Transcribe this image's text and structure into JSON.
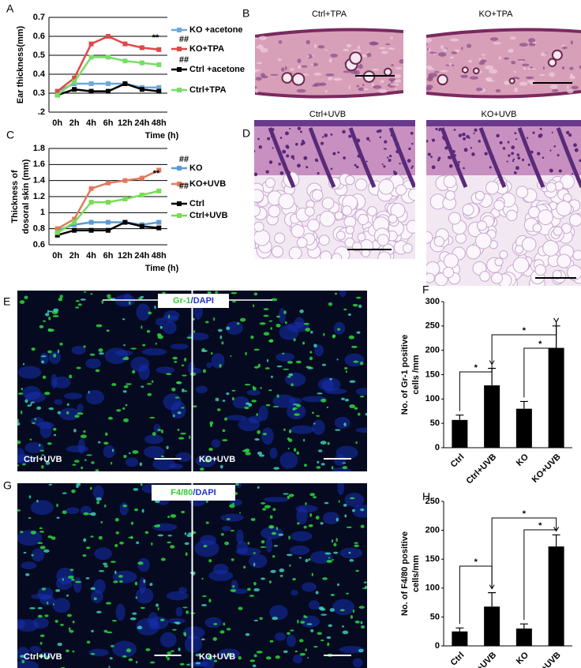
{
  "panels": {
    "letters": [
      "A",
      "B",
      "C",
      "D",
      "E",
      "F",
      "G",
      "H"
    ],
    "b_labels": [
      "Ctrl+TPA",
      "KO+TPA"
    ],
    "d_labels": [
      "Ctrl+UVB",
      "KO+UVB"
    ],
    "e_stain": [
      "Gr-1",
      "/DAPI"
    ],
    "e_labels": [
      "Ctrl+UVB",
      "KO+UVB"
    ],
    "g_stain": [
      "F4/80",
      "/DAPI"
    ],
    "g_labels": [
      "Ctrl+UVB",
      "KO+UVB"
    ]
  },
  "chart_data": [
    {
      "type": "line",
      "ylabel": [
        "Ear thickness(mm)"
      ],
      "xlabel": "Time (h)",
      "categories": [
        "0h",
        "2h",
        "4h",
        "6h",
        "12h",
        "24h",
        "48h"
      ],
      "ylim": [
        0.2,
        0.7
      ],
      "yticks": [
        {
          "value": 0.2,
          "label": ".2"
        },
        0.3,
        0.4,
        0.5,
        0.6,
        0.7
      ],
      "grid": true,
      "series": [
        {
          "name": "KO +acetone",
          "color": "#6fa8dc",
          "values": [
            0.31,
            0.35,
            0.35,
            0.35,
            0.35,
            0.33,
            0.33
          ]
        },
        {
          "name": "KO+TPA",
          "color": "#e04848",
          "values": [
            0.31,
            0.38,
            0.56,
            0.6,
            0.56,
            0.54,
            0.53
          ]
        },
        {
          "name": "Ctrl +acetone",
          "color": "#000000",
          "values": [
            0.29,
            0.32,
            0.31,
            0.31,
            0.35,
            0.32,
            0.31
          ]
        },
        {
          "name": "Ctrl+TPA",
          "color": "#77dd66",
          "values": [
            0.29,
            0.36,
            0.49,
            0.49,
            0.47,
            0.46,
            0.45
          ]
        }
      ],
      "annotations": [
        "**",
        "##",
        "##"
      ]
    },
    {
      "type": "line",
      "ylabel": [
        "Thickness of",
        "dosoral skin (mm)"
      ],
      "xlabel": "Time (h)",
      "categories": [
        "0h",
        "2h",
        "4h",
        "6h",
        "12h",
        "24h",
        "48h"
      ],
      "ylim": [
        0.6,
        1.8
      ],
      "yticks": [
        0.6,
        0.8,
        1,
        1.2,
        1.4,
        1.6,
        1.8
      ],
      "grid": true,
      "series": [
        {
          "name": "KO",
          "color": "#5b9bd5",
          "values": [
            0.78,
            0.85,
            0.88,
            0.88,
            0.88,
            0.85,
            0.88
          ]
        },
        {
          "name": "KO+UVB",
          "color": "#e07a5f",
          "values": [
            0.8,
            0.92,
            1.3,
            1.37,
            1.4,
            1.43,
            1.53
          ]
        },
        {
          "name": "Ctrl",
          "color": "#000000",
          "values": [
            0.72,
            0.78,
            0.78,
            0.78,
            0.88,
            0.83,
            0.81
          ]
        },
        {
          "name": "Ctrl+UVB",
          "color": "#77dd55",
          "values": [
            0.75,
            0.88,
            1.13,
            1.13,
            1.17,
            1.22,
            1.27
          ]
        }
      ],
      "annotations": [
        "**",
        "##",
        "##"
      ]
    },
    {
      "type": "bar",
      "ylabel": [
        "No. of Gr-1 positive",
        "cells /mm"
      ],
      "categories": [
        "Ctrl",
        "Ctrl+UVB",
        "KO",
        "KO+UVB"
      ],
      "values": [
        57,
        128,
        80,
        205
      ],
      "errors": [
        10,
        35,
        15,
        45
      ],
      "color": "#000000",
      "ylim": [
        0,
        300
      ],
      "yticks": [
        0,
        50,
        100,
        150,
        200,
        250,
        300
      ],
      "annotations": [
        "*",
        "*",
        "*"
      ]
    },
    {
      "type": "bar",
      "ylabel": [
        "No. of F4/80 positive",
        "cells/mm"
      ],
      "categories": [
        "Ctrl",
        "Ctrl+UVB",
        "KO",
        "KO+UVB"
      ],
      "values": [
        25,
        68,
        30,
        172
      ],
      "errors": [
        6,
        24,
        8,
        20
      ],
      "color": "#000000",
      "ylim": [
        0,
        250
      ],
      "yticks": [
        0,
        50,
        100,
        150,
        200,
        250
      ],
      "annotations": [
        "*",
        "*",
        "*"
      ]
    }
  ]
}
